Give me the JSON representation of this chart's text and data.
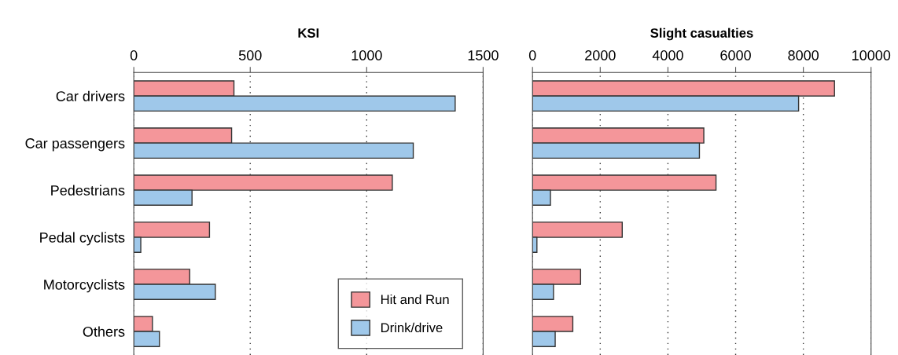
{
  "chart_data": [
    {
      "type": "bar",
      "orientation": "horizontal",
      "title": "KSI",
      "categories": [
        "Car drivers",
        "Car passengers",
        "Pedestrians",
        "Pedal cyclists",
        "Motorcyclists",
        "Others"
      ],
      "series": [
        {
          "name": "Hit and Run",
          "color": "#f4969a",
          "values": [
            430,
            420,
            1110,
            325,
            240,
            80
          ]
        },
        {
          "name": "Drink/drive",
          "color": "#9fc8ea",
          "values": [
            1380,
            1200,
            250,
            30,
            350,
            110
          ]
        }
      ],
      "xlim": [
        0,
        1500
      ],
      "xticks": [
        0,
        500,
        1000,
        1500
      ],
      "grid": "x",
      "legend": "bottom right"
    },
    {
      "type": "bar",
      "orientation": "horizontal",
      "title": "Slight casualties",
      "categories": [
        null,
        null,
        null,
        null,
        null,
        null
      ],
      "series": [
        {
          "color": "#f4969a",
          "values": [
            8920,
            5060,
            5420,
            2650,
            1420,
            1190
          ]
        },
        {
          "color": "#9fc8ea",
          "values": [
            7860,
            4930,
            530,
            130,
            620,
            670
          ]
        }
      ],
      "xlim": [
        0,
        10000
      ],
      "xticks": [
        0,
        2000,
        4000,
        6000,
        8000,
        10000
      ],
      "grid": "x",
      "tick_labels": "x"
    }
  ]
}
